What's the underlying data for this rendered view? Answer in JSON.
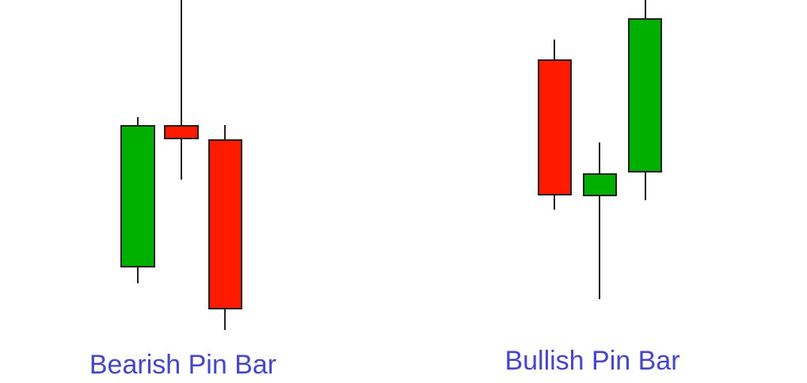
{
  "labels": [
    "Bearish Pin Bar",
    "Bullish Pin Bar"
  ]
}
